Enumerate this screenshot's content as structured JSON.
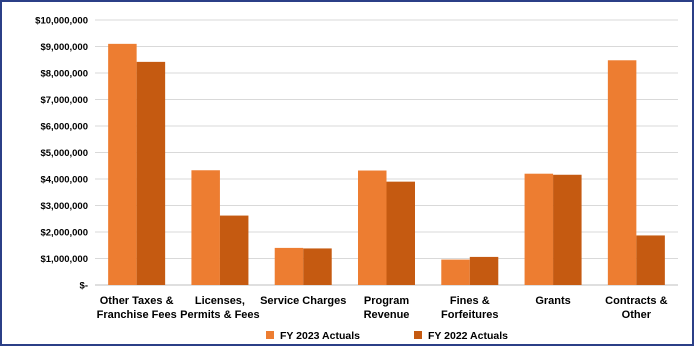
{
  "chart_data": {
    "type": "bar",
    "title": "",
    "xlabel": "",
    "ylabel": "",
    "ylim": [
      0,
      10000000
    ],
    "ytick_values": [
      0,
      1000000,
      2000000,
      3000000,
      4000000,
      5000000,
      6000000,
      7000000,
      8000000,
      9000000,
      10000000
    ],
    "ytick_labels": [
      "$-",
      "$1,000,000",
      "$2,000,000",
      "$3,000,000",
      "$4,000,000",
      "$5,000,000",
      "$6,000,000",
      "$7,000,000",
      "$8,000,000",
      "$9,000,000",
      "$10,000,000"
    ],
    "grid": true,
    "legend_position": "bottom",
    "categories": [
      [
        "Other Taxes &",
        "Franchise Fees"
      ],
      [
        "Licenses,",
        "Permits & Fees"
      ],
      [
        "Service Charges"
      ],
      [
        "Program",
        "Revenue"
      ],
      [
        "Fines &",
        "Forfeitures"
      ],
      [
        "Grants"
      ],
      [
        "Contracts &",
        "Other"
      ]
    ],
    "series": [
      {
        "name": "FY 2023 Actuals",
        "color": "#ed7d31",
        "values": [
          9100000,
          4330000,
          1400000,
          4320000,
          960000,
          4200000,
          8480000
        ]
      },
      {
        "name": "FY 2022 Actuals",
        "color": "#c55a11",
        "values": [
          8420000,
          2620000,
          1380000,
          3900000,
          1060000,
          4160000,
          1870000
        ]
      }
    ]
  }
}
